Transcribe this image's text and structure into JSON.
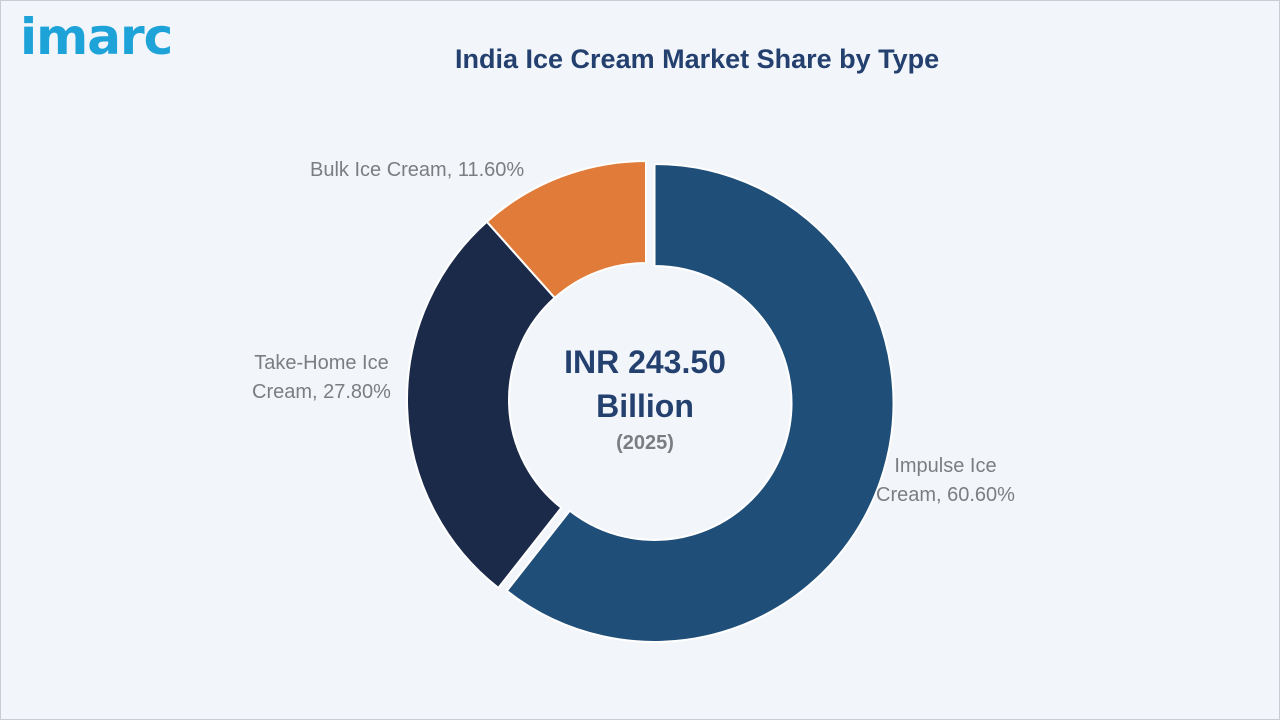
{
  "brand": {
    "logo_text": "imarc"
  },
  "chart_data": {
    "type": "pie",
    "style": "donut",
    "title": "India Ice Cream Market Share by Type",
    "center_text": {
      "line1": "INR 243.50",
      "line2": "Billion",
      "line3": "(2025)"
    },
    "slices": [
      {
        "category": "Impulse Ice Cream",
        "value": 60.6,
        "label_line1": "Impulse Ice",
        "label_line2": "Cream, 60.60%",
        "color": "#1f4e79"
      },
      {
        "category": "Take-Home Ice Cream",
        "value": 27.8,
        "label_line1": "Take-Home Ice",
        "label_line2": "Cream, 27.80%",
        "color": "#1c2a4a"
      },
      {
        "category": "Bulk Ice Cream",
        "value": 11.6,
        "label_line1": "Bulk Ice Cream, 11.60%",
        "label_line2": "",
        "color": "#e07b39"
      }
    ],
    "legend": "none"
  }
}
